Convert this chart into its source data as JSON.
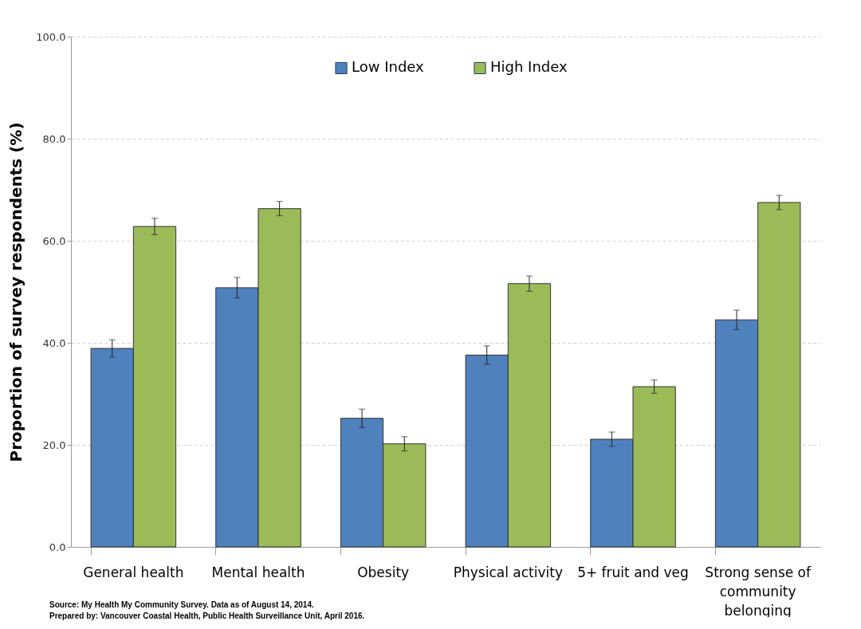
{
  "chart_data": {
    "type": "bar",
    "categories": [
      "General health",
      "Mental health",
      "Obesity",
      "Physical activity",
      "5+ fruit and veg",
      "Strong sense of community belonging"
    ],
    "series": [
      {
        "name": "Low Index",
        "color": "#4f81bd",
        "values": [
          38.9,
          50.8,
          25.2,
          37.6,
          21.1,
          44.5
        ],
        "errors": [
          1.7,
          2.0,
          1.8,
          1.8,
          1.4,
          1.9
        ]
      },
      {
        "name": "High Index",
        "color": "#9bbb59",
        "values": [
          62.8,
          66.3,
          20.2,
          51.6,
          31.4,
          67.5
        ],
        "errors": [
          1.6,
          1.4,
          1.4,
          1.5,
          1.3,
          1.4
        ]
      }
    ],
    "ylabel": "Proportion of survey respondents (%)",
    "ylim": [
      0,
      100
    ],
    "yticks": [
      {
        "value": 0,
        "label": "0.0"
      },
      {
        "value": 20,
        "label": "20.0"
      },
      {
        "value": 40,
        "label": "40.0"
      },
      {
        "value": 60,
        "label": "60.0"
      },
      {
        "value": 80,
        "label": "80.0"
      },
      {
        "value": 100,
        "label": "100.0"
      }
    ],
    "grid": "y",
    "legend": "top",
    "annotations": [
      "Source: My Health My Community Survey. Data as of August 14, 2014.",
      "Prepared by: Vancouver Coastal Health, Public Health Surveillance Unit,  April 2016."
    ]
  }
}
